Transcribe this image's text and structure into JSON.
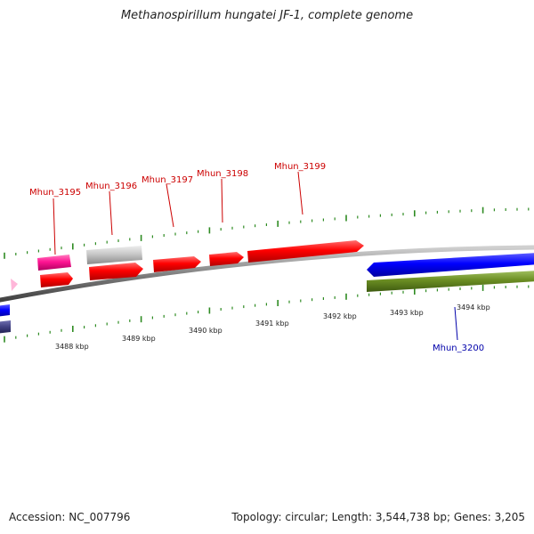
{
  "title": "Methanospirillum hungatei JF-1, complete genome",
  "footer": {
    "accession": "Accession: NC_007796",
    "topology": "Topology: circular; Length: 3,544,738 bp; Genes: 3,205"
  },
  "colors": {
    "forward_label": "#cc0000",
    "reverse_label": "#0000aa",
    "tick": "#2e8b22",
    "backbone": "#808080"
  },
  "tick_labels": [
    "3488 kbp",
    "3489 kbp",
    "3490 kbp",
    "3491 kbp",
    "3492 kbp",
    "3493 kbp",
    "3494 kbp"
  ],
  "genes": [
    {
      "name": "Mhun_3195",
      "strand": "+",
      "color": "red"
    },
    {
      "name": "Mhun_3196",
      "strand": "+",
      "color": "red"
    },
    {
      "name": "Mhun_3197",
      "strand": "+",
      "color": "red"
    },
    {
      "name": "Mhun_3198",
      "strand": "+",
      "color": "red"
    },
    {
      "name": "Mhun_3199",
      "strand": "+",
      "color": "red"
    },
    {
      "name": "Mhun_3200",
      "strand": "-",
      "color": "blue"
    }
  ]
}
